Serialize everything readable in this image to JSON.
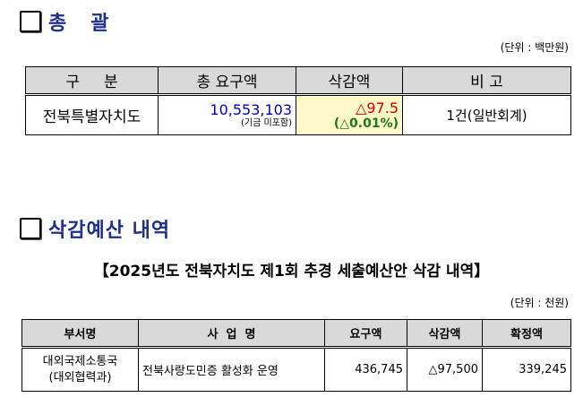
{
  "summary": {
    "title": "총   괄",
    "unit": "(단위 : 백만원)",
    "headers": [
      "구     분",
      "총 요구액",
      "삭감액",
      "비 고"
    ],
    "row": {
      "region": "전북특별자치도",
      "requested": "10,553,103",
      "requested_note": "(기금 미포함)",
      "cut": "△97.5",
      "cut_pct": "(△0.01%)",
      "remark": "1건(일반회계)"
    }
  },
  "detail": {
    "title": "삭감예산 내역",
    "subtitle": "【2025년도 전북자치도 제1회 추경 세출예산안 삭감 내역】",
    "unit": "(단위 : 천원)",
    "headers": [
      "부서명",
      "사  업  명",
      "요구액",
      "삭감액",
      "확정액"
    ],
    "row": {
      "dept": "대외국제소통국",
      "dept_sub": "(대외협력과)",
      "project": "전북사랑도민증 활성화 운영",
      "requested": "436,745",
      "cut": "△97,500",
      "final": "339,245"
    }
  },
  "colors": {
    "heading": "#1f2f8f",
    "requested": "#0000c0",
    "cut": "#d00000",
    "pct": "#1a7a1a",
    "cut_bg": "#fff8c8",
    "header_bg": "#d9d9d9"
  }
}
